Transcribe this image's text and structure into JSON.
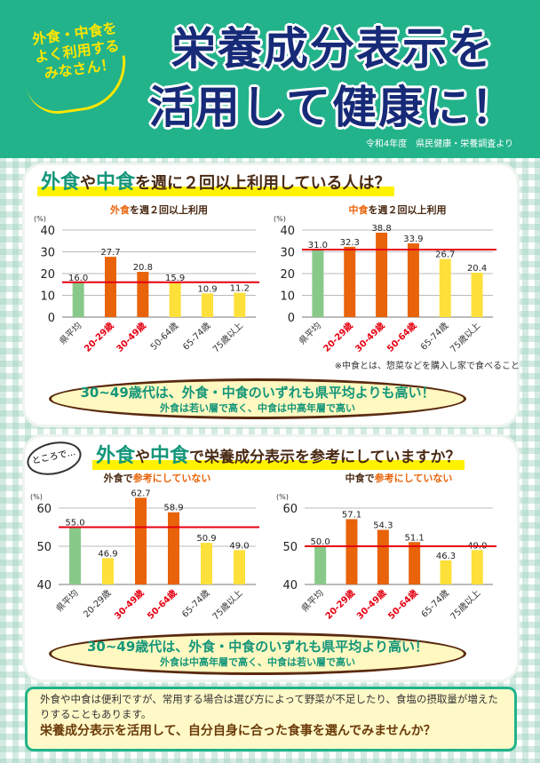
{
  "header": {
    "bubble": [
      "外食・中食を",
      "よく利用する",
      "みなさん！"
    ],
    "title_line1": "栄養成分表示を",
    "title_line2": "活用して健康に！",
    "source": "令和4年度　県民健康・栄養調査より"
  },
  "section1": {
    "heading_a": "外食",
    "heading_b": "や",
    "heading_c": "中食",
    "heading_d": "を週に２回以上利用している人は？",
    "note": "※中食とは、惣菜などを購入し家で食べること",
    "callout_main": "30~49歳代は、外食・中食のいずれも県平均よりも高い！",
    "callout_sub": "外食は若い層で高く、中食は中高年層で高い"
  },
  "section2": {
    "tag": "ところで…",
    "heading_a": "外食",
    "heading_b": "や",
    "heading_c": "中食",
    "heading_d": "で栄養成分表示を参考にしていますか？",
    "callout_main": "30~49歳代は、外食・中食のいずれも県平均より高い！",
    "callout_sub": "外食は中高年層で高く、中食は若い層で高い"
  },
  "bottom": {
    "text": "外食や中食は便利ですが、常用する場合は選び方によって野菜が不足したり、食塩の摂取量が増えたりすることもあります。",
    "emphasis": "栄養成分表示を活用して、自分自身に合った食事を選んでみませんか？"
  },
  "colors": {
    "average": "#88c98a",
    "high": "#e8630a",
    "other": "#fde03a",
    "refline": "#e60012"
  },
  "chart_data": [
    {
      "type": "bar",
      "title_a": "外食",
      "title_b": "を週２回以上利用",
      "ylabel": "(%)",
      "ylim": [
        0,
        40
      ],
      "yticks": [
        0,
        10,
        20,
        30,
        40
      ],
      "categories": [
        "県平均",
        "20-29歳",
        "30-49歳",
        "50-64歳",
        "65-74歳",
        "75歳以上"
      ],
      "values": [
        16.0,
        27.7,
        20.8,
        15.9,
        10.9,
        11.2
      ],
      "labels": [
        "16.0",
        "27.7",
        "20.8",
        "15.9",
        "10.9",
        "11.2"
      ],
      "kind": [
        "average",
        "high",
        "high",
        "other",
        "other",
        "other"
      ],
      "reference": 16.0
    },
    {
      "type": "bar",
      "title_a": "中食",
      "title_b": "を週２回以上利用",
      "ylabel": "(%)",
      "ylim": [
        0,
        40
      ],
      "yticks": [
        0,
        10,
        20,
        30,
        40
      ],
      "categories": [
        "県平均",
        "20-29歳",
        "30-49歳",
        "50-64歳",
        "65-74歳",
        "75歳以上"
      ],
      "values": [
        31.0,
        32.3,
        38.8,
        33.9,
        26.7,
        20.4
      ],
      "labels": [
        "31.0",
        "32.3",
        "38.8",
        "33.9",
        "26.7",
        "20.4"
      ],
      "kind": [
        "average",
        "high",
        "high",
        "high",
        "other",
        "other"
      ],
      "reference": 31.0
    },
    {
      "type": "bar",
      "title_a": "外食で",
      "title_b": "参考にしていない",
      "ylabel": "(%)",
      "ylim": [
        40,
        60
      ],
      "yticks": [
        40,
        50,
        60
      ],
      "categories": [
        "県平均",
        "20-29歳",
        "30-49歳",
        "50-64歳",
        "65-74歳",
        "75歳以上"
      ],
      "values": [
        55.0,
        46.9,
        62.7,
        58.9,
        50.9,
        49.0
      ],
      "labels": [
        "55.0",
        "46.9",
        "62.7",
        "58.9",
        "50.9",
        "49.0"
      ],
      "kind": [
        "average",
        "other",
        "high",
        "high",
        "other",
        "other"
      ],
      "reference": 55.0
    },
    {
      "type": "bar",
      "title_a": "中食で",
      "title_b": "参考にしていない",
      "ylabel": "(%)",
      "ylim": [
        40,
        60
      ],
      "yticks": [
        40,
        50,
        60
      ],
      "categories": [
        "県平均",
        "20-29歳",
        "30-49歳",
        "50-64歳",
        "65-74歳",
        "75歳以上"
      ],
      "values": [
        50.0,
        57.1,
        54.3,
        51.1,
        46.3,
        49.0
      ],
      "labels": [
        "50.0",
        "57.1",
        "54.3",
        "51.1",
        "46.3",
        "49.0"
      ],
      "kind": [
        "average",
        "high",
        "high",
        "high",
        "other",
        "other"
      ],
      "reference": 50.0
    }
  ]
}
